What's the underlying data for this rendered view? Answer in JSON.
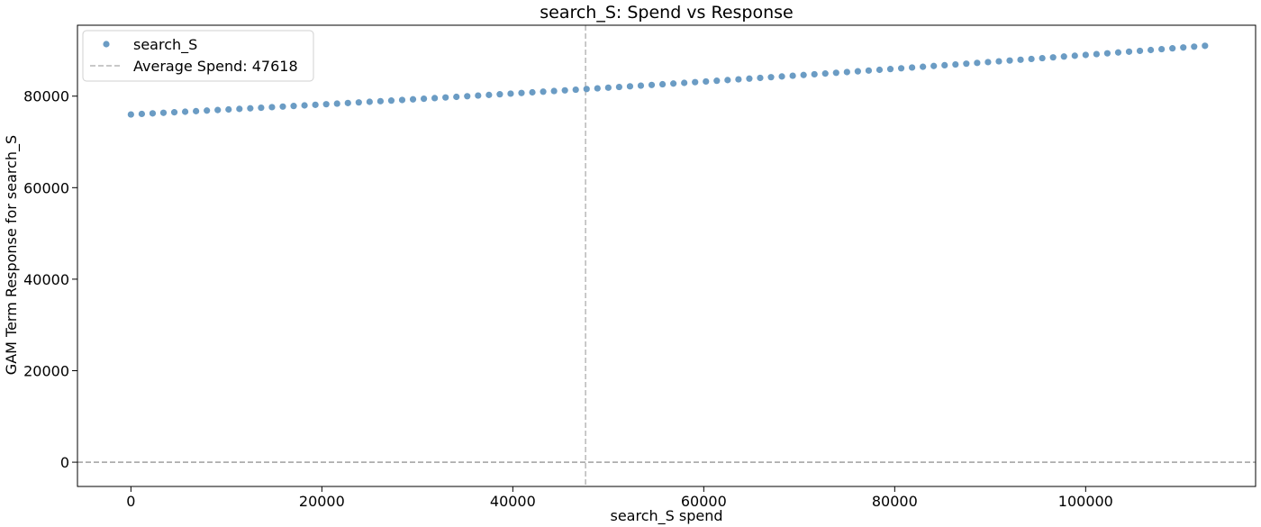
{
  "chart_data": {
    "type": "scatter",
    "title": "search_S: Spend vs Response",
    "xlabel": "search_S spend",
    "ylabel": "GAM Term Response for search_S",
    "xlim": [
      -5600,
      117800
    ],
    "ylim": [
      -5300,
      95500
    ],
    "x_ticks": [
      0,
      20000,
      40000,
      60000,
      80000,
      100000
    ],
    "x_tick_labels": [
      "0",
      "20000",
      "40000",
      "60000",
      "80000",
      "100000"
    ],
    "y_ticks": [
      0,
      20000,
      40000,
      60000,
      80000
    ],
    "y_tick_labels": [
      "0",
      "20000",
      "40000",
      "60000",
      "80000"
    ],
    "grid": false,
    "legend_position": "top-left",
    "series": [
      {
        "name": "search_S",
        "color": "#6b9cc4",
        "x_start": 0,
        "x_end": 112500,
        "n_points": 100,
        "y_start": 76000,
        "y_end": 91000,
        "y_curve": "slightly convex increasing"
      }
    ],
    "reference_lines": [
      {
        "orientation": "vertical",
        "x": 47618,
        "label": "Average Spend: 47618",
        "color": "#a6a6a6",
        "style": "dashed"
      },
      {
        "orientation": "horizontal",
        "y": 0,
        "label": "",
        "color": "#7f7f7f",
        "style": "dashed"
      }
    ]
  }
}
